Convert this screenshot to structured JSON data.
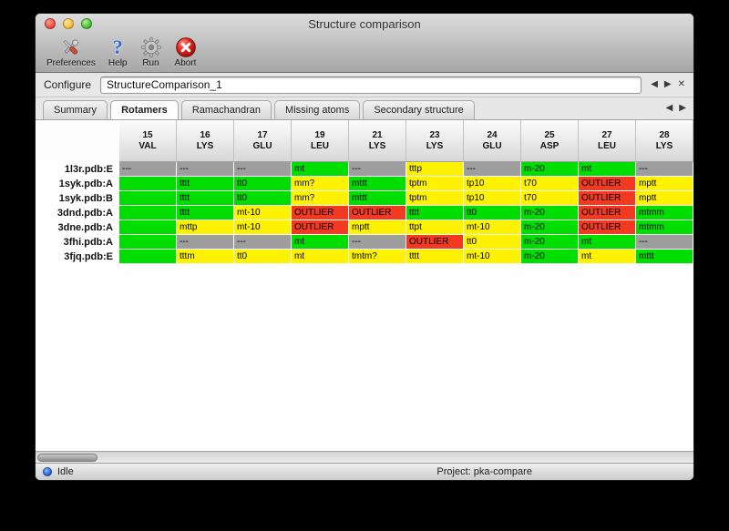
{
  "window": {
    "title": "Structure comparison"
  },
  "toolbar": {
    "items": [
      {
        "label": "Preferences"
      },
      {
        "label": "Help",
        "glyph": "?"
      },
      {
        "label": "Run"
      },
      {
        "label": "Abort"
      }
    ]
  },
  "configure": {
    "label": "Configure",
    "value": "StructureComparison_1",
    "nav": {
      "back": "◀",
      "forward": "▶",
      "close": "✕"
    }
  },
  "tabs": {
    "items": [
      {
        "label": "Summary",
        "active": false
      },
      {
        "label": "Rotamers",
        "active": true
      },
      {
        "label": "Ramachandran",
        "active": false
      },
      {
        "label": "Missing atoms",
        "active": false
      },
      {
        "label": "Secondary structure",
        "active": false
      }
    ],
    "nav": {
      "back": "◀",
      "forward": "▶"
    }
  },
  "colors": {
    "green": "#00dd00",
    "yellow": "#fff200",
    "red": "#f23a22",
    "gray": "#9e9e9e"
  },
  "table": {
    "columns": [
      {
        "number": "15",
        "residue": "VAL"
      },
      {
        "number": "16",
        "residue": "LYS"
      },
      {
        "number": "17",
        "residue": "GLU"
      },
      {
        "number": "19",
        "residue": "LEU"
      },
      {
        "number": "21",
        "residue": "LYS"
      },
      {
        "number": "23",
        "residue": "LYS"
      },
      {
        "number": "24",
        "residue": "GLU"
      },
      {
        "number": "25",
        "residue": "ASP"
      },
      {
        "number": "27",
        "residue": "LEU"
      },
      {
        "number": "28",
        "residue": "LYS"
      }
    ],
    "rows": [
      {
        "name": "1l3r.pdb:E",
        "cells": [
          {
            "text": "---",
            "color": "gray"
          },
          {
            "text": "---",
            "color": "gray"
          },
          {
            "text": "---",
            "color": "gray"
          },
          {
            "text": "mt",
            "color": "green"
          },
          {
            "text": "---",
            "color": "gray"
          },
          {
            "text": "tttp",
            "color": "yellow"
          },
          {
            "text": "---",
            "color": "gray"
          },
          {
            "text": "m-20",
            "color": "green"
          },
          {
            "text": "mt",
            "color": "green"
          },
          {
            "text": "---",
            "color": "gray"
          }
        ]
      },
      {
        "name": "1syk.pdb:A",
        "cells": [
          {
            "text": "",
            "color": "green"
          },
          {
            "text": "tttt",
            "color": "green"
          },
          {
            "text": "tt0",
            "color": "green"
          },
          {
            "text": "mm?",
            "color": "yellow"
          },
          {
            "text": "mttt",
            "color": "green"
          },
          {
            "text": "tptm",
            "color": "yellow"
          },
          {
            "text": "tp10",
            "color": "yellow"
          },
          {
            "text": "t70",
            "color": "yellow"
          },
          {
            "text": "OUTLIER",
            "color": "red"
          },
          {
            "text": "mptt",
            "color": "yellow"
          }
        ]
      },
      {
        "name": "1syk.pdb:B",
        "cells": [
          {
            "text": "",
            "color": "green"
          },
          {
            "text": "tttt",
            "color": "green"
          },
          {
            "text": "tt0",
            "color": "green"
          },
          {
            "text": "mm?",
            "color": "yellow"
          },
          {
            "text": "mttt",
            "color": "green"
          },
          {
            "text": "tptm",
            "color": "yellow"
          },
          {
            "text": "tp10",
            "color": "yellow"
          },
          {
            "text": "t70",
            "color": "yellow"
          },
          {
            "text": "OUTLIER",
            "color": "red"
          },
          {
            "text": "mptt",
            "color": "yellow"
          }
        ]
      },
      {
        "name": "3dnd.pdb:A",
        "cells": [
          {
            "text": "",
            "color": "green"
          },
          {
            "text": "tttt",
            "color": "green"
          },
          {
            "text": "mt-10",
            "color": "yellow"
          },
          {
            "text": "OUTLIER",
            "color": "red"
          },
          {
            "text": "OUTLIER",
            "color": "red"
          },
          {
            "text": "tttt",
            "color": "green"
          },
          {
            "text": "tt0",
            "color": "green"
          },
          {
            "text": "m-20",
            "color": "green"
          },
          {
            "text": "OUTLIER",
            "color": "red"
          },
          {
            "text": "mtmm",
            "color": "green"
          }
        ]
      },
      {
        "name": "3dne.pdb:A",
        "cells": [
          {
            "text": "",
            "color": "green"
          },
          {
            "text": "mttp",
            "color": "yellow"
          },
          {
            "text": "mt-10",
            "color": "yellow"
          },
          {
            "text": "OUTLIER",
            "color": "red"
          },
          {
            "text": "mptt",
            "color": "yellow"
          },
          {
            "text": "ttpt",
            "color": "yellow"
          },
          {
            "text": "mt-10",
            "color": "yellow"
          },
          {
            "text": "m-20",
            "color": "green"
          },
          {
            "text": "OUTLIER",
            "color": "red"
          },
          {
            "text": "mtmm",
            "color": "green"
          }
        ]
      },
      {
        "name": "3fhi.pdb:A",
        "cells": [
          {
            "text": "",
            "color": "green"
          },
          {
            "text": "---",
            "color": "gray"
          },
          {
            "text": "---",
            "color": "gray"
          },
          {
            "text": "mt",
            "color": "green"
          },
          {
            "text": "---",
            "color": "gray"
          },
          {
            "text": "OUTLIER",
            "color": "red"
          },
          {
            "text": "tt0",
            "color": "yellow"
          },
          {
            "text": "m-20",
            "color": "green"
          },
          {
            "text": "mt",
            "color": "green"
          },
          {
            "text": "---",
            "color": "gray"
          }
        ]
      },
      {
        "name": "3fjq.pdb:E",
        "cells": [
          {
            "text": "",
            "color": "green"
          },
          {
            "text": "tttm",
            "color": "yellow"
          },
          {
            "text": "tt0",
            "color": "yellow"
          },
          {
            "text": "mt",
            "color": "yellow"
          },
          {
            "text": "tmtm?",
            "color": "yellow"
          },
          {
            "text": "tttt",
            "color": "yellow"
          },
          {
            "text": "mt-10",
            "color": "yellow"
          },
          {
            "text": "m-20",
            "color": "green"
          },
          {
            "text": "mt",
            "color": "yellow"
          },
          {
            "text": "mttt",
            "color": "green"
          }
        ]
      }
    ]
  },
  "statusbar": {
    "state": "Idle",
    "project": "Project: pka-compare"
  }
}
